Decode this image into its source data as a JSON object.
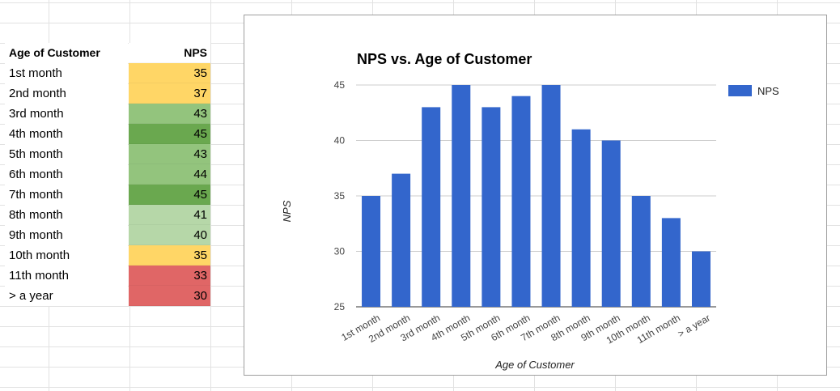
{
  "table": {
    "header": {
      "label": "Age of Customer",
      "value": "NPS"
    },
    "rows": [
      {
        "label": "1st month",
        "value": "35",
        "color": "#ffd666"
      },
      {
        "label": "2nd month",
        "value": "37",
        "color": "#ffd666"
      },
      {
        "label": "3rd month",
        "value": "43",
        "color": "#93c47d"
      },
      {
        "label": "4th month",
        "value": "45",
        "color": "#6aa84f"
      },
      {
        "label": "5th month",
        "value": "43",
        "color": "#93c47d"
      },
      {
        "label": "6th month",
        "value": "44",
        "color": "#93c47d"
      },
      {
        "label": "7th month",
        "value": "45",
        "color": "#6aa84f"
      },
      {
        "label": "8th month",
        "value": "41",
        "color": "#b6d7a8"
      },
      {
        "label": "9th month",
        "value": "40",
        "color": "#b6d7a8"
      },
      {
        "label": "10th month",
        "value": "35",
        "color": "#ffd666"
      },
      {
        "label": "11th month",
        "value": "33",
        "color": "#e06666"
      },
      {
        "label": "> a year",
        "value": "30",
        "color": "#e06666"
      }
    ]
  },
  "chart_data": {
    "type": "bar",
    "title": "NPS vs. Age of Customer",
    "xlabel": "Age of Customer",
    "ylabel": "NPS",
    "categories": [
      "1st month",
      "2nd month",
      "3rd month",
      "4th month",
      "5th month",
      "6th month",
      "7th month",
      "8th month",
      "9th month",
      "10th month",
      "11th month",
      "> a year"
    ],
    "series": [
      {
        "name": "NPS",
        "values": [
          35,
          37,
          43,
          45,
          43,
          44,
          45,
          41,
          40,
          35,
          33,
          30
        ],
        "color": "#3366cc"
      }
    ],
    "ylim": [
      25,
      45
    ],
    "yticks": [
      25,
      30,
      35,
      40,
      45
    ],
    "grid": true,
    "legend_position": "right"
  }
}
